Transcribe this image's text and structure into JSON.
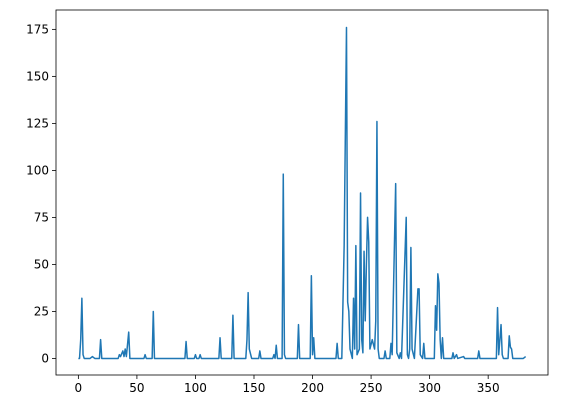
{
  "chart_data": {
    "type": "line",
    "color": "#1f77b4",
    "x": [
      0,
      1,
      2,
      3,
      4,
      5,
      10,
      12,
      14,
      18,
      19,
      20,
      34,
      35,
      36,
      38,
      39,
      40,
      41,
      43,
      44,
      56,
      57,
      58,
      63,
      64,
      65,
      91,
      92,
      93,
      99,
      100,
      101,
      103,
      104,
      105,
      120,
      121,
      122,
      131,
      132,
      133,
      143,
      144,
      145,
      146,
      148,
      154,
      155,
      156,
      166,
      167,
      168,
      169,
      170,
      174,
      175,
      176,
      177,
      187,
      188,
      189,
      198,
      199,
      200,
      201,
      202,
      220,
      221,
      222,
      225,
      227,
      229,
      230,
      231,
      232,
      234,
      235,
      236,
      237,
      238,
      240,
      241,
      242,
      243,
      244,
      245,
      246,
      247,
      248,
      249,
      251,
      253,
      254,
      255,
      256,
      257,
      261,
      262,
      263,
      266,
      267,
      268,
      271,
      272,
      274,
      275,
      276,
      280,
      281,
      282,
      283,
      284,
      285,
      287,
      290,
      291,
      292,
      294,
      295,
      296,
      304,
      305,
      306,
      307,
      308,
      309,
      310,
      311,
      312,
      319,
      320,
      321,
      323,
      324,
      329,
      330,
      341,
      342,
      343,
      357,
      358,
      359,
      361,
      362,
      363,
      367,
      368,
      369,
      370,
      371,
      380,
      382
    ],
    "values": [
      0,
      0,
      10,
      32,
      2,
      0,
      0,
      1,
      0,
      0,
      10,
      0,
      0,
      2,
      1,
      4,
      1,
      5,
      1,
      14,
      0,
      0,
      2,
      0,
      0,
      25,
      0,
      0,
      9,
      0,
      0,
      2,
      0,
      0,
      2,
      0,
      0,
      11,
      0,
      0,
      23,
      0,
      0,
      10,
      35,
      5,
      0,
      0,
      4,
      0,
      0,
      2,
      0,
      7,
      0,
      0,
      98,
      2,
      0,
      0,
      18,
      0,
      0,
      44,
      2,
      11,
      0,
      0,
      8,
      0,
      0,
      60,
      176,
      30,
      25,
      5,
      0,
      32,
      5,
      60,
      2,
      5,
      88,
      10,
      3,
      57,
      20,
      50,
      75,
      62,
      5,
      10,
      5,
      20,
      126,
      5,
      0,
      0,
      4,
      0,
      0,
      8,
      2,
      93,
      3,
      0,
      3,
      0,
      75,
      2,
      0,
      5,
      59,
      5,
      0,
      37,
      37,
      2,
      0,
      8,
      0,
      0,
      28,
      15,
      45,
      40,
      10,
      0,
      11,
      0,
      0,
      3,
      0,
      2,
      0,
      1,
      0,
      0,
      4,
      0,
      0,
      27,
      2,
      18,
      2,
      0,
      0,
      12,
      6,
      5,
      0,
      0,
      1
    ],
    "xlim": [
      -19.1,
      401.1
    ],
    "ylim": [
      -8.8,
      185.3
    ],
    "xticks": [
      0,
      50,
      100,
      150,
      200,
      250,
      300,
      350
    ],
    "yticks": [
      0,
      25,
      50,
      75,
      100,
      125,
      150,
      175
    ]
  }
}
